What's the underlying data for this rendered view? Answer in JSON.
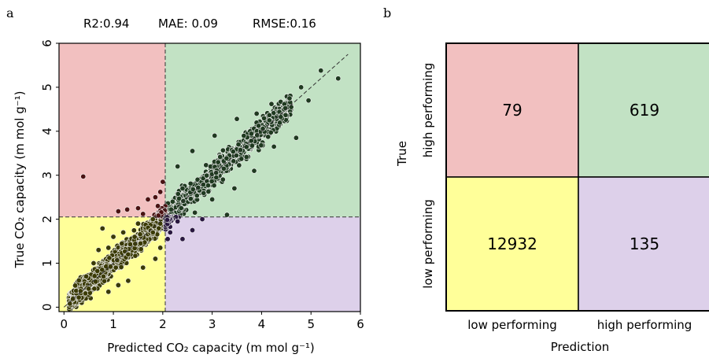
{
  "panels": {
    "a": "a",
    "b": "b"
  },
  "metrics": {
    "r2": "R2:0.94",
    "mae": "MAE: 0.09",
    "rmse": "RMSE:0.16"
  },
  "colors": {
    "red_region": "#f2c0c0",
    "green_region": "#c2e2c4",
    "yellow_region": "#ffff99",
    "purple_region": "#ddd0ea",
    "point_high_true_high_pred": "#1f3a20",
    "point_high_true_low_pred": "#4a1212",
    "point_low_true_low_pred": "#3a3a05",
    "point_low_true_high_pred": "#2a1840"
  },
  "chart_data": [
    {
      "type": "scatter",
      "title": "",
      "xlabel": "Predicted CO₂ capacity (m mol g⁻¹)",
      "ylabel": "True CO₂ capacity (m mol g⁻¹)",
      "xlim": [
        -0.1,
        6
      ],
      "ylim": [
        -0.1,
        6
      ],
      "xticks": [
        0,
        1,
        2,
        3,
        4,
        5,
        6
      ],
      "yticks": [
        0,
        1,
        2,
        3,
        4,
        5,
        6
      ],
      "threshold": {
        "x": 2.05,
        "y": 2.05
      },
      "identity_line": true,
      "regions": {
        "true_high_pred_low": "red_region",
        "true_high_pred_high": "green_region",
        "true_low_pred_low": "yellow_region",
        "true_low_pred_high": "purple_region"
      },
      "points": [
        [
          0.39,
          2.97
        ],
        [
          0.78,
          1.79
        ],
        [
          1.1,
          2.18
        ],
        [
          1.28,
          2.22
        ],
        [
          1.5,
          2.25
        ],
        [
          1.7,
          2.45
        ],
        [
          1.85,
          2.5
        ],
        [
          1.95,
          2.62
        ],
        [
          1.6,
          2.12
        ],
        [
          1.9,
          2.3
        ],
        [
          5.2,
          5.38
        ],
        [
          5.55,
          5.2
        ],
        [
          4.8,
          5.0
        ],
        [
          4.95,
          4.7
        ],
        [
          4.6,
          4.55
        ],
        [
          4.2,
          4.62
        ],
        [
          3.9,
          4.4
        ],
        [
          3.5,
          4.28
        ],
        [
          3.05,
          3.9
        ],
        [
          2.6,
          3.55
        ],
        [
          2.3,
          3.2
        ],
        [
          2.0,
          2.85
        ],
        [
          2.2,
          2.4
        ],
        [
          2.4,
          2.7
        ],
        [
          4.7,
          3.85
        ],
        [
          4.25,
          3.65
        ],
        [
          3.85,
          3.1
        ],
        [
          3.45,
          2.7
        ],
        [
          3.0,
          2.45
        ],
        [
          2.65,
          2.15
        ],
        [
          2.3,
          1.95
        ],
        [
          2.15,
          1.7
        ],
        [
          2.4,
          1.55
        ],
        [
          2.6,
          1.75
        ],
        [
          2.8,
          2.0
        ],
        [
          2.1,
          1.55
        ],
        [
          3.3,
          2.1
        ],
        [
          0.12,
          0.08
        ],
        [
          0.3,
          0.22
        ],
        [
          0.5,
          0.42
        ],
        [
          0.8,
          0.7
        ],
        [
          1.05,
          0.9
        ],
        [
          1.3,
          1.2
        ],
        [
          1.55,
          1.45
        ],
        [
          1.8,
          1.7
        ],
        [
          1.95,
          1.9
        ],
        [
          0.6,
          1.0
        ],
        [
          0.9,
          1.35
        ],
        [
          1.2,
          1.7
        ],
        [
          1.5,
          1.9
        ],
        [
          1.8,
          2.0
        ],
        [
          1.3,
          0.6
        ],
        [
          1.6,
          0.9
        ],
        [
          1.85,
          1.1
        ],
        [
          1.95,
          1.35
        ],
        [
          0.9,
          0.35
        ],
        [
          1.1,
          0.5
        ],
        [
          0.45,
          0.7
        ],
        [
          0.7,
          1.3
        ],
        [
          1.0,
          1.6
        ]
      ],
      "point_clouds": [
        {
          "region": "true_low_pred_low",
          "count": 1450,
          "x_range": [
            0.1,
            2.05
          ],
          "spread": 0.22
        },
        {
          "region": "true_high_pred_high",
          "count": 620,
          "x_range": [
            2.05,
            4.6
          ],
          "spread": 0.28
        },
        {
          "region": "true_high_pred_low",
          "count": 79,
          "x_range": [
            1.2,
            2.05
          ],
          "spread": 0.2
        },
        {
          "region": "true_low_pred_high",
          "count": 135,
          "x_range": [
            2.05,
            2.9
          ],
          "spread": 0.2
        }
      ]
    },
    {
      "type": "heatmap",
      "title": "",
      "xlabel": "Prediction",
      "ylabel": "True",
      "x_categories": [
        "low performing",
        "high performing"
      ],
      "y_categories": [
        "high performing",
        "low performing"
      ],
      "matrix": [
        [
          79,
          619
        ],
        [
          12932,
          135
        ]
      ],
      "cell_colors": [
        [
          "#f2c0c0",
          "#c2e2c4"
        ],
        [
          "#ffff99",
          "#ddd0ea"
        ]
      ]
    }
  ]
}
